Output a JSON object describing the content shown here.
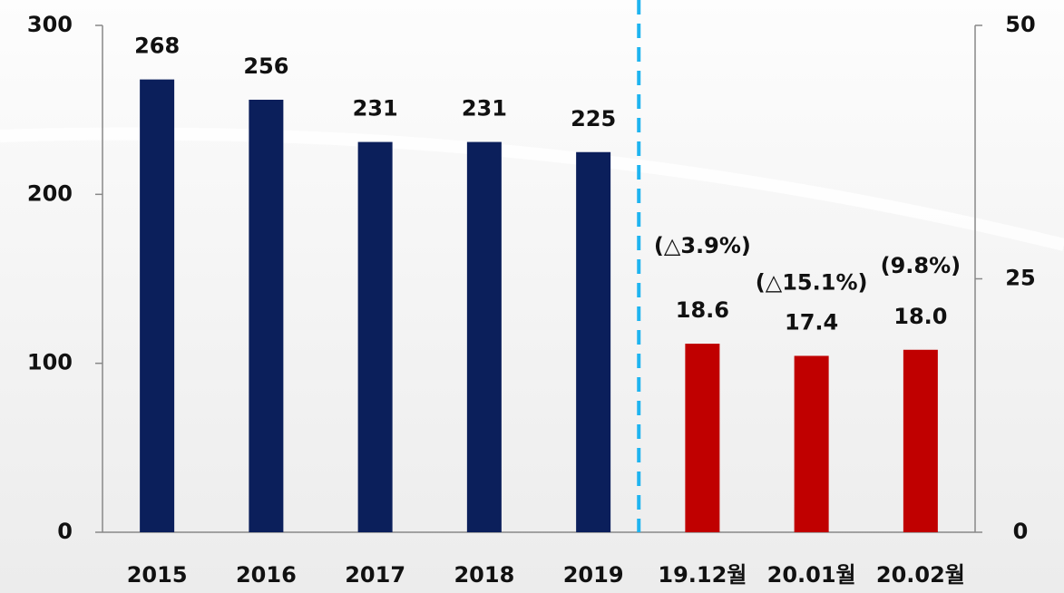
{
  "chart_data": {
    "type": "bar",
    "categories": [
      "2015",
      "2016",
      "2017",
      "2018",
      "2019",
      "19.12월",
      "20.01월",
      "20.02월"
    ],
    "series": [
      {
        "color": "#0b1f5b",
        "values": [
          268,
          256,
          231,
          231,
          225,
          null,
          null,
          null
        ]
      },
      {
        "color": "#c00000",
        "axis": "y2",
        "values": [
          null,
          null,
          null,
          null,
          null,
          18.6,
          17.4,
          18.0
        ],
        "value_labels": [
          null,
          null,
          null,
          null,
          null,
          "18.6",
          "17.4",
          "18.0"
        ]
      }
    ],
    "annotations": [
      "(△3.9%)",
      "(△15.1%)",
      "(9.8%)"
    ],
    "ylim": [
      0,
      300
    ],
    "yticks": [
      0,
      100,
      200,
      300
    ],
    "y2lim": [
      0,
      50
    ],
    "y2ticks": [
      0,
      25,
      50
    ],
    "divider_color": "#1fb4f0"
  }
}
